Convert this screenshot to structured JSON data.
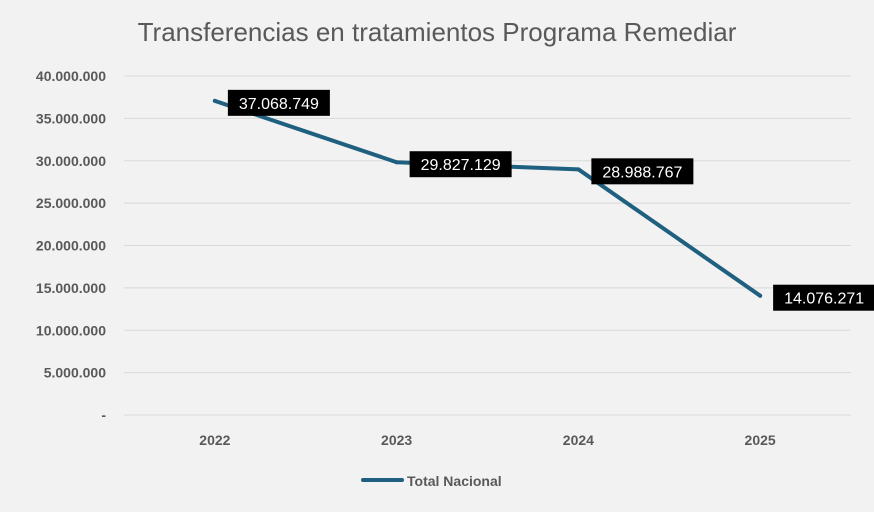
{
  "chart_data": {
    "type": "line",
    "title": "Transferencias en tratamientos Programa Remediar",
    "categories": [
      "2022",
      "2023",
      "2024",
      "2025"
    ],
    "series": [
      {
        "name": "Total Nacional",
        "values": [
          37068749,
          29827129,
          28988767,
          14076271
        ],
        "data_labels": [
          "37.068.749",
          "29.827.129",
          "28.988.767",
          "14.076.271"
        ],
        "color": "#1f5f7f"
      }
    ],
    "yticks": [
      {
        "value": 40000000,
        "label": "40.000.000"
      },
      {
        "value": 35000000,
        "label": "35.000.000"
      },
      {
        "value": 30000000,
        "label": "30.000.000"
      },
      {
        "value": 25000000,
        "label": "25.000.000"
      },
      {
        "value": 20000000,
        "label": "20.000.000"
      },
      {
        "value": 15000000,
        "label": "15.000.000"
      },
      {
        "value": 10000000,
        "label": "10.000.000"
      },
      {
        "value": 5000000,
        "label": "5.000.000"
      },
      {
        "value": 0,
        "label": "-"
      }
    ],
    "ylim": [
      0,
      40000000
    ],
    "xlabel": "",
    "ylabel": "",
    "grid": true,
    "legend_position": "bottom"
  },
  "colors": {
    "background": "#f2f2f2",
    "grid": "#d9d9d9",
    "text": "#595959",
    "label_box": "#000000",
    "label_text": "#ffffff"
  }
}
